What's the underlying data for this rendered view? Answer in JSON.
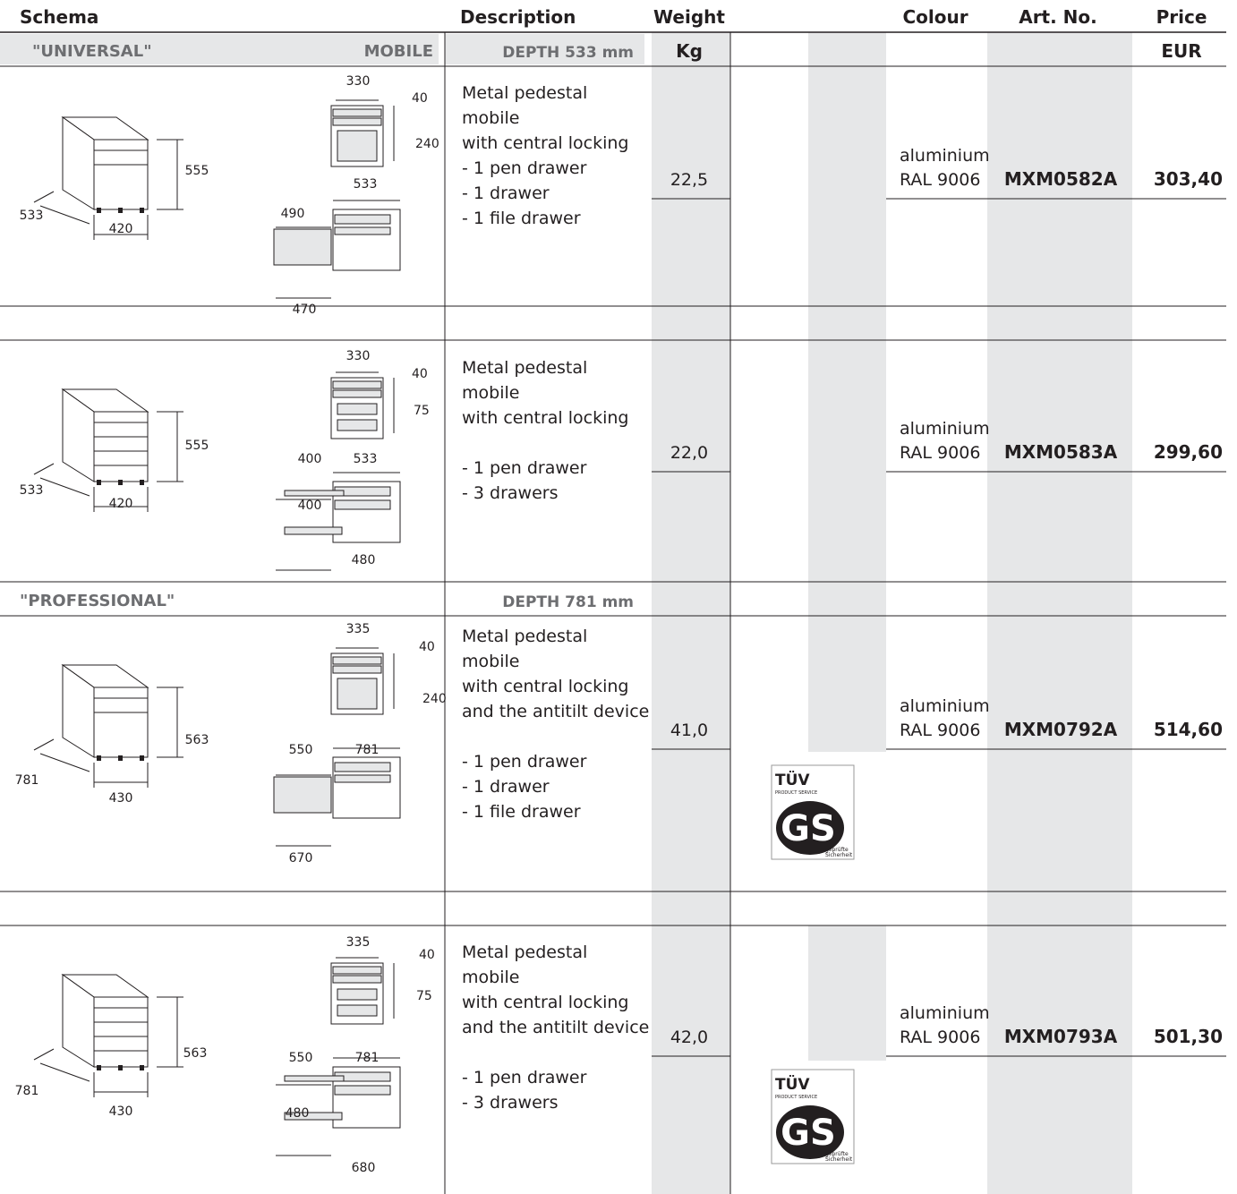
{
  "header": {
    "schema": "Schema",
    "description": "Description",
    "weight": "Weight",
    "colour": "Colour",
    "art_no": "Art. No.",
    "price": "Price"
  },
  "units": {
    "weight": "Kg",
    "price": "EUR"
  },
  "sections": [
    {
      "name": "\"UNIVERSAL\"",
      "type": "MOBILE",
      "depth": "DEPTH 533 mm"
    },
    {
      "name": "\"PROFESSIONAL\"",
      "depth": "DEPTH 781 mm"
    }
  ],
  "products": [
    {
      "description": [
        "Metal pedestal",
        "mobile",
        "with central locking"
      ],
      "features": [
        "- 1 pen drawer",
        "- 1 drawer",
        "- 1 file drawer"
      ],
      "weight": "22,5",
      "colour": [
        "aluminium",
        "RAL 9006"
      ],
      "art_no": "MXM0582A",
      "price": "303,40",
      "dimensions": [
        "330",
        "40",
        "240",
        "555",
        "533",
        "420",
        "533",
        "490",
        "470"
      ]
    },
    {
      "description": [
        "Metal pedestal",
        "mobile",
        "with central locking"
      ],
      "features": [
        "- 1 pen drawer",
        "- 3 drawers"
      ],
      "weight": "22,0",
      "colour": [
        "aluminium",
        "RAL 9006"
      ],
      "art_no": "MXM0583A",
      "price": "299,60",
      "dimensions": [
        "330",
        "40",
        "75",
        "555",
        "533",
        "420",
        "400",
        "533",
        "400",
        "480"
      ]
    },
    {
      "description": [
        "Metal pedestal",
        "mobile",
        "with central locking",
        "and the antitilt device"
      ],
      "features": [
        "- 1 pen drawer",
        "- 1 drawer",
        "- 1 file drawer"
      ],
      "weight": "41,0",
      "colour": [
        "aluminium",
        "RAL 9006"
      ],
      "art_no": "MXM0792A",
      "price": "514,60",
      "dimensions": [
        "335",
        "40",
        "240",
        "563",
        "781",
        "430",
        "550",
        "781",
        "670"
      ]
    },
    {
      "description": [
        "Metal pedestal",
        "mobile",
        "with central locking",
        "and the antitilt device"
      ],
      "features": [
        "- 1 pen drawer",
        "- 3 drawers"
      ],
      "weight": "42,0",
      "colour": [
        "aluminium",
        "RAL 9006"
      ],
      "art_no": "MXM0793A",
      "price": "501,30",
      "dimensions": [
        "335",
        "40",
        "75",
        "563",
        "781",
        "430",
        "550",
        "781",
        "480",
        "680"
      ]
    }
  ],
  "certification": {
    "brand": "TÜV",
    "service": "PRODUCT SERVICE",
    "mark": "GS",
    "caption": [
      "geprüfte",
      "Sicherheit"
    ]
  }
}
